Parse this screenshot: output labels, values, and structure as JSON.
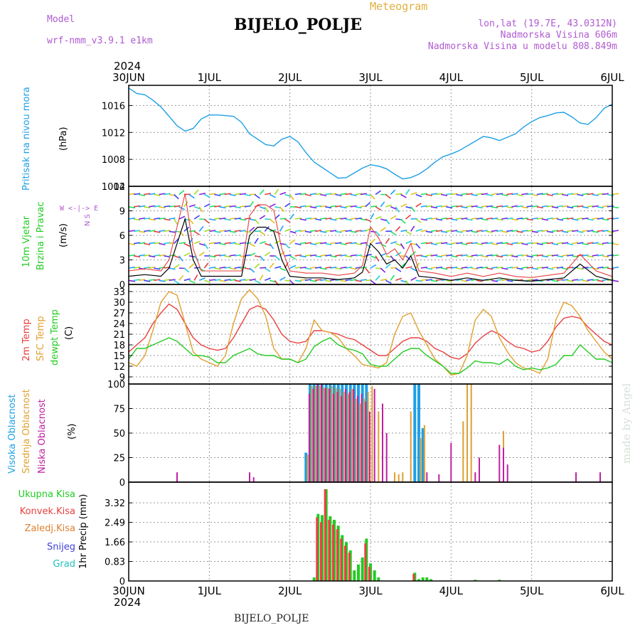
{
  "header": {
    "model_label": "Model",
    "model_name": "wrf-nmm_v3.9.1  e1km",
    "station": "BIJELO_POLJE",
    "meteogram": "Meteogram",
    "lonlat": "lon,lat (19.7E, 43.0312N)",
    "elevation": "Nadmorska Visina 606m",
    "model_elevation": "Nadmorska Visina u modelu 808.849m",
    "footer_station": "BIJELO_POLJE",
    "watermark": "made by Angel",
    "year_top": "2024",
    "year_bottom": "2024"
  },
  "colors": {
    "pressure": "#1ea0e6",
    "temp2m": "#e84040",
    "sfc": "#e0a030",
    "dewpt": "#22cc22",
    "high_cloud": "#1ea0e6",
    "mid_cloud": "#e0a030",
    "low_cloud": "#c020a0",
    "total_precip": "#22cc22",
    "conv_precip": "#e84040",
    "frz_precip": "#e08030",
    "snow": "#4040e0",
    "grad": "#20c0c0"
  },
  "chart_data": [
    {
      "type": "line",
      "name": "pressure",
      "label_left": "Pritisak na nivou mora",
      "unit": "(hPa)",
      "xlabels": [
        "30JUN",
        "1JUL",
        "2JUL",
        "3JUL",
        "4JUL",
        "5JUL",
        "6JUL"
      ],
      "ylim": [
        1004,
        1019
      ],
      "yticks": [
        1004,
        1008,
        1012,
        1016
      ],
      "series": [
        {
          "x": [
            0,
            0.1,
            0.2,
            0.3,
            0.4,
            0.5,
            0.6,
            0.7,
            0.8,
            0.9,
            1.0,
            1.1,
            1.2,
            1.3,
            1.4,
            1.5,
            1.6,
            1.7,
            1.8,
            1.9,
            2.0,
            2.1,
            2.2,
            2.3,
            2.4,
            2.5,
            2.6,
            2.7,
            2.8,
            2.9,
            3.0,
            3.1,
            3.2,
            3.3,
            3.4,
            3.5,
            3.6,
            3.7,
            3.8,
            3.9,
            4.0,
            4.1,
            4.2,
            4.3,
            4.4,
            4.5,
            4.6,
            4.7,
            4.8,
            4.9,
            5.0,
            5.1,
            5.2,
            5.3,
            5.4,
            5.5,
            5.6,
            5.7,
            5.8,
            5.9,
            6.0
          ],
          "y": [
            1018.6,
            1017.8,
            1017.6,
            1016.8,
            1015.8,
            1014.4,
            1013.0,
            1012.2,
            1012.6,
            1014.0,
            1014.6,
            1014.6,
            1014.5,
            1014.4,
            1013.5,
            1011.8,
            1011.0,
            1010.2,
            1010.0,
            1011.0,
            1011.4,
            1010.6,
            1009.0,
            1007.6,
            1006.8,
            1006.0,
            1005.2,
            1005.3,
            1006.0,
            1006.7,
            1007.2,
            1007.0,
            1006.6,
            1005.8,
            1005.1,
            1005.3,
            1005.8,
            1006.6,
            1007.6,
            1008.4,
            1008.8,
            1009.3,
            1010.0,
            1010.7,
            1011.4,
            1011.2,
            1010.8,
            1011.3,
            1011.8,
            1012.8,
            1013.6,
            1014.2,
            1014.5,
            1014.9,
            1015.0,
            1014.3,
            1013.4,
            1013.2,
            1014.2,
            1015.6,
            1016.2
          ]
        }
      ]
    },
    {
      "type": "line",
      "name": "wind",
      "label_left": "10m Vjetar",
      "label_left2": "Brzina i Pravac",
      "unit": "(m/s)",
      "compass": "W <-|-> E",
      "compass_ns": "N S",
      "ylim": [
        0,
        12
      ],
      "yticks": [
        0,
        3,
        6,
        9,
        12
      ],
      "series": [
        {
          "x": [
            0,
            0.2,
            0.4,
            0.5,
            0.6,
            0.7,
            0.8,
            0.9,
            1.0,
            1.2,
            1.4,
            1.5,
            1.6,
            1.7,
            1.8,
            1.9,
            2.0,
            2.2,
            2.4,
            2.6,
            2.8,
            2.9,
            3.0,
            3.1,
            3.2,
            3.3,
            3.4,
            3.5,
            3.6,
            3.8,
            4.0,
            4.2,
            4.4,
            4.6,
            4.8,
            5.0,
            5.2,
            5.4,
            5.6,
            5.8,
            6.0
          ],
          "y": [
            1.0,
            1.2,
            1.0,
            2.0,
            5.0,
            8.0,
            3.0,
            1.0,
            1.0,
            1.0,
            1.0,
            6.0,
            7.0,
            7.0,
            6.5,
            3.0,
            1.0,
            0.8,
            0.8,
            0.6,
            0.8,
            1.5,
            5.0,
            4.0,
            2.5,
            3.0,
            2.0,
            3.5,
            1.0,
            0.8,
            0.5,
            0.8,
            0.5,
            0.8,
            0.5,
            0.4,
            0.6,
            0.8,
            2.5,
            1.0,
            0.5
          ]
        }
      ]
    },
    {
      "type": "line",
      "name": "temperature",
      "labels_left": [
        "2m Temp",
        "SFC Temp",
        "dewpt Temp"
      ],
      "unit": "(C)",
      "ylim": [
        7,
        35
      ],
      "yticks": [
        9,
        12,
        15,
        18,
        21,
        24,
        27,
        30,
        33
      ],
      "series": [
        {
          "key": "temp2m",
          "x": [
            0,
            0.1,
            0.2,
            0.3,
            0.4,
            0.5,
            0.6,
            0.7,
            0.8,
            0.9,
            1.0,
            1.1,
            1.2,
            1.3,
            1.4,
            1.5,
            1.6,
            1.7,
            1.8,
            1.9,
            2.0,
            2.1,
            2.2,
            2.3,
            2.4,
            2.5,
            2.6,
            2.7,
            2.8,
            2.9,
            3.0,
            3.1,
            3.2,
            3.3,
            3.4,
            3.5,
            3.6,
            3.7,
            3.8,
            3.9,
            4.0,
            4.1,
            4.2,
            4.3,
            4.4,
            4.5,
            4.6,
            4.7,
            4.8,
            4.9,
            5.0,
            5.1,
            5.2,
            5.3,
            5.4,
            5.5,
            5.6,
            5.7,
            5.8,
            5.9,
            6.0
          ],
          "y": [
            16,
            18,
            20,
            24,
            27,
            29.5,
            28,
            24,
            20,
            18,
            17,
            16.5,
            17,
            20,
            24,
            28,
            29,
            28,
            25,
            21,
            19,
            18.5,
            19,
            22,
            22,
            21.5,
            21,
            20,
            19.5,
            18,
            16.5,
            15,
            15,
            17,
            19,
            20,
            20,
            19,
            17,
            16,
            14.5,
            14,
            15.5,
            18.5,
            20.5,
            22,
            21,
            19,
            17.5,
            17,
            16,
            16.5,
            19,
            23,
            25.5,
            26,
            25.5,
            23,
            21,
            19,
            18
          ]
        },
        {
          "key": "sfc",
          "x": [
            0,
            0.1,
            0.2,
            0.3,
            0.4,
            0.5,
            0.6,
            0.7,
            0.8,
            0.9,
            1.0,
            1.1,
            1.2,
            1.3,
            1.4,
            1.5,
            1.6,
            1.7,
            1.8,
            1.9,
            2.0,
            2.1,
            2.2,
            2.3,
            2.4,
            2.5,
            2.6,
            2.7,
            2.8,
            2.9,
            3.0,
            3.1,
            3.2,
            3.3,
            3.4,
            3.5,
            3.6,
            3.7,
            3.8,
            3.9,
            4.0,
            4.1,
            4.2,
            4.3,
            4.4,
            4.5,
            4.6,
            4.7,
            4.8,
            4.9,
            5.0,
            5.1,
            5.2,
            5.3,
            5.4,
            5.5,
            5.6,
            5.7,
            5.8,
            5.9,
            6.0
          ],
          "y": [
            13,
            12,
            15,
            22,
            30,
            33,
            32,
            24,
            16,
            14,
            13,
            12,
            15,
            24,
            31,
            33.5,
            31,
            26,
            17,
            14,
            14,
            13,
            17,
            25,
            22,
            21.5,
            20,
            17,
            15,
            12.5,
            12,
            11.5,
            13,
            21,
            26,
            27,
            22,
            18,
            14,
            12,
            9.5,
            10,
            15,
            25,
            28,
            26,
            20,
            16,
            13,
            11.5,
            11,
            10,
            14,
            25,
            30,
            29,
            26,
            22,
            19,
            16,
            14
          ]
        },
        {
          "key": "dewpt",
          "x": [
            0,
            0.1,
            0.2,
            0.3,
            0.4,
            0.5,
            0.6,
            0.7,
            0.8,
            0.9,
            1.0,
            1.1,
            1.2,
            1.3,
            1.4,
            1.5,
            1.6,
            1.7,
            1.8,
            1.9,
            2.0,
            2.1,
            2.2,
            2.3,
            2.4,
            2.5,
            2.6,
            2.7,
            2.8,
            2.9,
            3.0,
            3.1,
            3.2,
            3.3,
            3.4,
            3.5,
            3.6,
            3.7,
            3.8,
            3.9,
            4.0,
            4.1,
            4.2,
            4.3,
            4.4,
            4.5,
            4.6,
            4.7,
            4.8,
            4.9,
            5.0,
            5.1,
            5.2,
            5.3,
            5.4,
            5.5,
            5.6,
            5.7,
            5.8,
            5.9,
            6.0
          ],
          "y": [
            14,
            17,
            17,
            18,
            19,
            20,
            19,
            17,
            15,
            15,
            14.5,
            13,
            13,
            15,
            16,
            17,
            15.5,
            15,
            15,
            14,
            14,
            13,
            14,
            17.5,
            19,
            20,
            18,
            17,
            16.5,
            15.5,
            12.5,
            12,
            12,
            14,
            16,
            17,
            17,
            15,
            13.5,
            12,
            10,
            10,
            11.5,
            13.5,
            13,
            13,
            12.5,
            14,
            12,
            11,
            11.5,
            11,
            11.5,
            12.5,
            15,
            15,
            18,
            16,
            14,
            14,
            13
          ]
        }
      ]
    },
    {
      "type": "bar",
      "name": "clouds",
      "labels_left": [
        "Visoka Oblacnost",
        "Srednja Oblacnost",
        "Niska Oblacnost"
      ],
      "unit": "(%)",
      "ylim": [
        0,
        100
      ],
      "yticks": [
        0,
        25,
        50,
        75,
        100
      ],
      "series": [
        {
          "key": "high_cloud",
          "x": [
            2.2,
            2.25,
            2.3,
            2.35,
            2.4,
            2.45,
            2.5,
            2.55,
            2.6,
            2.65,
            2.7,
            2.75,
            2.8,
            2.85,
            2.9,
            2.95,
            3.55,
            3.6,
            3.65
          ],
          "y": [
            30,
            100,
            100,
            100,
            100,
            100,
            100,
            100,
            100,
            100,
            100,
            100,
            100,
            100,
            100,
            100,
            100,
            100,
            55
          ]
        },
        {
          "key": "mid_cloud",
          "x": [
            2.22,
            2.27,
            2.32,
            2.37,
            2.42,
            2.47,
            2.52,
            2.57,
            2.62,
            2.67,
            2.72,
            2.77,
            2.82,
            2.87,
            2.92,
            2.97,
            3.02,
            3.1,
            3.3,
            3.35,
            3.4,
            3.5,
            3.62,
            3.67,
            4.15,
            4.2,
            4.25,
            4.65
          ],
          "y": [
            28,
            98,
            98,
            98,
            96,
            96,
            98,
            96,
            95,
            92,
            90,
            95,
            85,
            80,
            85,
            92,
            98,
            72,
            10,
            8,
            10,
            72,
            45,
            58,
            62,
            100,
            100,
            52
          ]
        },
        {
          "key": "low_cloud",
          "x": [
            0.6,
            1.5,
            1.55,
            2.24,
            2.29,
            2.34,
            2.39,
            2.44,
            2.49,
            2.54,
            2.59,
            2.64,
            2.69,
            2.74,
            2.79,
            2.84,
            2.89,
            2.94,
            2.99,
            3.05,
            3.15,
            3.2,
            3.7,
            3.85,
            4.0,
            4.3,
            4.35,
            4.6,
            4.65,
            4.7,
            5.55,
            5.85
          ],
          "y": [
            10,
            10,
            5,
            90,
            95,
            100,
            100,
            96,
            95,
            90,
            92,
            88,
            95,
            92,
            95,
            88,
            90,
            82,
            72,
            95,
            80,
            50,
            10,
            8,
            40,
            10,
            25,
            38,
            35,
            18,
            10,
            10
          ]
        }
      ]
    },
    {
      "type": "bar",
      "name": "precip",
      "labels_left": [
        "Ukupna  Kisa",
        "Konvek.Kisa",
        "Zaledj.Kisa",
        "Snijeg",
        "Grad"
      ],
      "unit": "1hr Precip (mm)",
      "xlabels": [
        "30JUN",
        "1JUL",
        "2JUL",
        "3JUL",
        "4JUL",
        "5JUL",
        "6JUL"
      ],
      "ylim": [
        0,
        4.2
      ],
      "yticks": [
        0,
        0.83,
        1.66,
        2.49,
        3.32
      ],
      "yticklabels": [
        "0",
        "0.83",
        "1.66",
        "2.49",
        "3.32"
      ],
      "series": [
        {
          "key": "total_precip",
          "x": [
            2.3,
            2.35,
            2.4,
            2.45,
            2.5,
            2.55,
            2.6,
            2.65,
            2.7,
            2.75,
            2.8,
            2.85,
            2.9,
            2.95,
            3.0,
            3.05,
            3.1,
            3.55,
            3.6,
            3.65,
            3.7,
            3.75,
            4.3,
            4.6
          ],
          "y": [
            0.15,
            2.85,
            2.8,
            3.9,
            2.75,
            2.6,
            2.35,
            1.95,
            1.65,
            1.3,
            0.45,
            0.7,
            1.0,
            1.8,
            0.75,
            0.45,
            0.15,
            0.35,
            0.08,
            0.15,
            0.15,
            0.08,
            0.05,
            0.05
          ]
        },
        {
          "key": "conv_precip",
          "x": [
            2.35,
            2.4,
            2.45,
            2.5,
            2.55,
            2.6,
            2.65,
            2.7,
            2.75,
            2.95,
            3.0,
            3.55
          ],
          "y": [
            2.7,
            2.5,
            3.9,
            2.6,
            2.4,
            2.2,
            1.8,
            1.5,
            1.2,
            1.6,
            0.6,
            0.3
          ]
        }
      ]
    }
  ]
}
